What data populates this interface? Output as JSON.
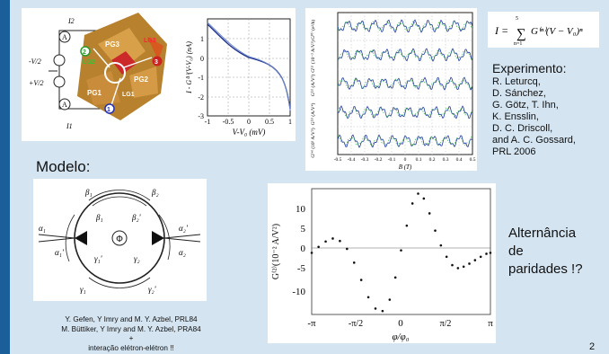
{
  "colors": {
    "background": "#d4e4f1",
    "sidebar": "#1a5f99",
    "panel": "#ffffff"
  },
  "device": {
    "labels": [
      "I2",
      "-V/2",
      "+V/2",
      "I1",
      "PG3",
      "LG2",
      "PG1",
      "LG1",
      "PG2",
      "LG3",
      "1",
      "2",
      "3",
      "A",
      "A"
    ]
  },
  "iv_plot": {
    "ylabel": "I - G⁽¹⁾(V-V₀) (nA)",
    "xlabel": "V-V₀ (mV)",
    "xticks": [
      "-1",
      "-0.5",
      "0",
      "0.5",
      "1"
    ],
    "yticks": [
      "1",
      "0",
      "-1",
      "-2",
      "-3"
    ]
  },
  "osc_plot": {
    "panel_labels": [
      "G⁽⁰⁾ (e²/h)",
      "G⁽¹⁾ (10⁻³ A/V²)",
      "G⁽²⁾ (A/V³)",
      "G⁽³⁾ (A/V⁴)",
      "G⁽⁴⁾ (10³ A/V⁵)"
    ],
    "xticks": [
      "-0.5",
      "-0.4",
      "-0.3",
      "-0.2",
      "-0.1",
      "0",
      "0.1",
      "0.2",
      "0.3",
      "0.4",
      "0.5"
    ],
    "xlabel": "B (T)"
  },
  "formula": {
    "lhs": "I =",
    "sum_top": "5",
    "sum_bottom": "n=1",
    "term": "G⁽ⁿ⁾(V − V₀)ⁿ"
  },
  "experiment": {
    "title": "Experimento:",
    "authors": [
      "R. Leturcq,",
      "D. Sánchez,",
      "G. Götz, T. Ihn,",
      "K. Ensslin,",
      "D. C. Driscoll,",
      "and A. C. Gossard,",
      "PRL 2006"
    ]
  },
  "model_label": "Modelo:",
  "model_diagram": {
    "labels": [
      "β₁",
      "β₂",
      "β₁",
      "β₂'",
      "α₁",
      "α₁'",
      "α₂'",
      "α₂",
      "γ₁'",
      "γ₂",
      "γ₁",
      "γ₂'",
      "Φ"
    ]
  },
  "g2_plot": {
    "ylabel": "G⁽²⁾(10⁻² A/V²)",
    "xlabel": "φ/φ₀",
    "yticks": [
      "10",
      "5",
      "0",
      "-5",
      "-10"
    ],
    "xticks": [
      "-π",
      "-π/2",
      "0",
      "π/2",
      "π"
    ]
  },
  "chart_data": {
    "type": "scatter",
    "title": "",
    "xlabel": "φ/φ₀",
    "ylabel": "G⁽²⁾(10⁻² A/V²)",
    "xlim": [
      -3.1416,
      3.1416
    ],
    "ylim": [
      -12.5,
      13
    ],
    "x": [
      -3.14,
      -2.9,
      -2.65,
      -2.4,
      -2.15,
      -1.9,
      -1.65,
      -1.4,
      -1.15,
      -0.9,
      -0.65,
      -0.4,
      -0.2,
      0.0,
      0.2,
      0.4,
      0.6,
      0.8,
      1.0,
      1.2,
      1.4,
      1.6,
      1.8,
      2.0,
      2.2,
      2.4,
      2.6,
      2.8,
      3.0,
      3.14
    ],
    "y": [
      0.0,
      1.2,
      2.3,
      2.9,
      2.4,
      0.8,
      -2.0,
      -5.5,
      -9.0,
      -11.3,
      -11.8,
      -9.5,
      -5.0,
      0.5,
      5.5,
      10.0,
      12.0,
      11.0,
      8.0,
      4.5,
      1.5,
      -0.8,
      -2.5,
      -3.1,
      -2.8,
      -2.2,
      -1.5,
      -0.8,
      -0.2,
      0.0
    ]
  },
  "alternation": [
    "Alternância",
    "de",
    "paridades !?"
  ],
  "references": {
    "lines": [
      "Y. Gefen, Y Imry and M. Y. Azbel, PRL84",
      "M. Büttiker, Y Imry and M. Y. Azbel, PRA84",
      "+",
      "interação elétron-elétron !!"
    ]
  },
  "page_number": "2"
}
